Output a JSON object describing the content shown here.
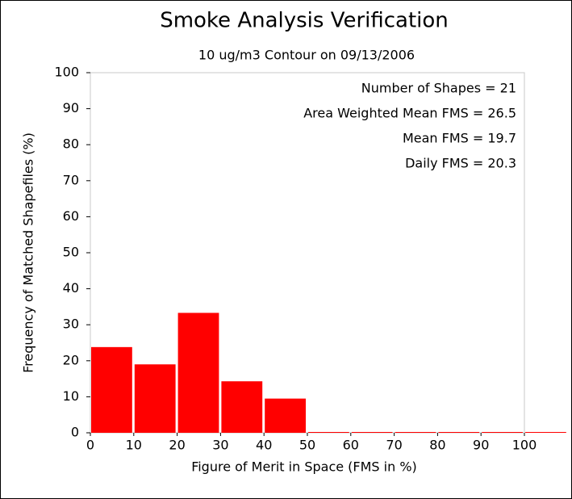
{
  "chart_data": {
    "type": "histogram",
    "title": "Smoke Analysis Verification",
    "subtitle": "10 ug/m3 Contour on 09/13/2006",
    "x_label": "Figure of Merit in Space (FMS in %)",
    "y_label": "Frequency of Matched Shapefiles (%)",
    "annotations": [
      "Number of Shapes = 21",
      "Area Weighted Mean FMS = 26.5",
      "Mean FMS = 19.7",
      "Daily FMS = 20.3"
    ],
    "bins": [
      0,
      10,
      20,
      30,
      40,
      50,
      60,
      70,
      80,
      90,
      100,
      110
    ],
    "values": [
      23.8,
      19.0,
      33.3,
      14.3,
      9.5,
      0,
      0,
      0,
      0,
      0,
      0
    ],
    "color": "#ff0000",
    "xlim": [
      0,
      100
    ],
    "ylim": [
      0,
      100
    ],
    "xticks": [
      0,
      10,
      20,
      30,
      40,
      50,
      60,
      70,
      80,
      90,
      100
    ],
    "yticks": [
      0,
      10,
      20,
      30,
      40,
      50,
      60,
      70,
      80,
      90,
      100
    ]
  }
}
